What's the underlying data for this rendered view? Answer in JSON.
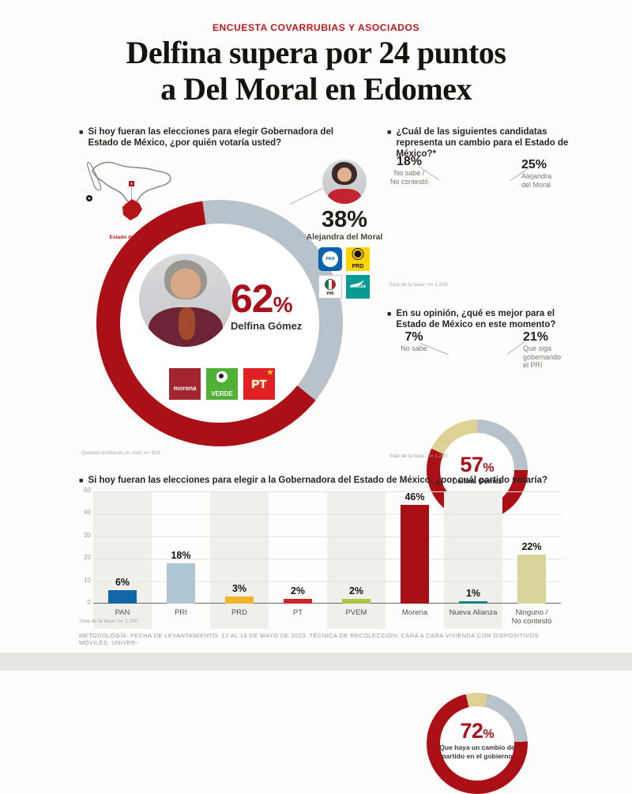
{
  "header": {
    "kicker": "ENCUESTA COVARRUBIAS Y ASOCIADOS",
    "title_line1": "Delfina supera por 24 puntos",
    "title_line2": "a Del Moral en Edomex"
  },
  "ui": {
    "bullet": "■"
  },
  "map": {
    "label": "Estado de México"
  },
  "logos": {
    "morena": "morena",
    "verde": "VERDE",
    "pt": "PT",
    "pt_star": "★",
    "pan": "PAN",
    "prd": "PRD",
    "pri": "PRI",
    "na": "alianza"
  },
  "footer": {
    "methodology": "METODOLOGÍA: FECHA DE LEVANTAMIENTO: 12 AL 16 DE MAYO DE 2023. TÉCNICA DE RECOLECCIÓN: CARA A CARA VIVIENDA CON DISPOSITIVOS MÓVILES. UNIVER-"
  },
  "chart_data": [
    {
      "type": "donut",
      "question": "Si hoy fueran las elecciones para elegir Gobernadora del Estado de México, ¿por quién votaría usted?",
      "start_angle": -8,
      "slices": [
        {
          "label": "Alejandra del Moral",
          "value": 38,
          "color": "#b7c2ca"
        },
        {
          "label": "Delfina Gómez",
          "value": 62,
          "color": "#ab1016"
        }
      ],
      "center": {
        "value": "62",
        "unit": "%",
        "label": "Delfina Gómez"
      },
      "callout": {
        "value": "38%",
        "label": "Alejandra del Moral"
      },
      "footnote": "Quienes emitieron un voto: n= 923"
    },
    {
      "type": "donut",
      "question": "¿Cuál de las siguientes candidatas representa un cambio para el Estado de México?*",
      "start_angle": 0,
      "slices": [
        {
          "label": "Alejandra del Moral",
          "value": 25,
          "color": "#b7c2ca"
        },
        {
          "label": "Delfina Gómez",
          "value": 57,
          "color": "#ab1016"
        },
        {
          "label": "No sabe / No contestó",
          "value": 18,
          "color": "#ddd193"
        }
      ],
      "center": {
        "value": "57",
        "unit": "%",
        "label": "Delfina Gómez"
      },
      "callout_left": {
        "value": "18%",
        "label": "No sabe /\nNo contestó"
      },
      "callout_right": {
        "value": "25%",
        "label": "Alejandra\ndel Moral"
      },
      "footnote": "Total de la base: n= 1,200"
    },
    {
      "type": "donut",
      "question": "En su opinión, ¿qué es mejor para el Estado de México en este momento?",
      "start_angle": -13,
      "slices": [
        {
          "label": "No sabe",
          "value": 7,
          "color": "#ddd193"
        },
        {
          "label": "Que siga gobernando el PRI",
          "value": 21,
          "color": "#b7c2ca"
        },
        {
          "label": "Que haya un cambio de partido en el gobierno",
          "value": 72,
          "color": "#ab1016"
        }
      ],
      "center": {
        "value": "72",
        "unit": "%",
        "label": "Que haya un cambio de partido en el gobierno"
      },
      "callout_left": {
        "value": "7%",
        "label": "No sabe"
      },
      "callout_right": {
        "value": "21%",
        "label": "Que siga\ngobernando\nel PRI"
      },
      "footnote": "Total de la base: n= 1,200"
    },
    {
      "type": "bar",
      "question": "Si hoy fueran las elecciones para elegir a la Gobernadora del Estado de México, ¿por cuál partido votaría?",
      "categories": [
        "PAN",
        "PRI",
        "PRD",
        "PT",
        "PVEM",
        "Morena",
        "Nueva Alianza",
        "Ninguno /\nNo contestó"
      ],
      "values": [
        6,
        18,
        3,
        2,
        2,
        46,
        1,
        22
      ],
      "value_labels": [
        "6%",
        "18%",
        "3%",
        "2%",
        "2%",
        "46%",
        "1%",
        "22%"
      ],
      "colors": [
        "#1268a6",
        "#aec5d3",
        "#f0b52a",
        "#c9252b",
        "#a8c840",
        "#a91016",
        "#17818a",
        "#d7d49c"
      ],
      "ylim": [
        0,
        50
      ],
      "yticks": [
        0,
        10,
        20,
        30,
        40,
        50
      ],
      "grid": true,
      "footnote": "Total de la base: n= 1,200"
    }
  ]
}
